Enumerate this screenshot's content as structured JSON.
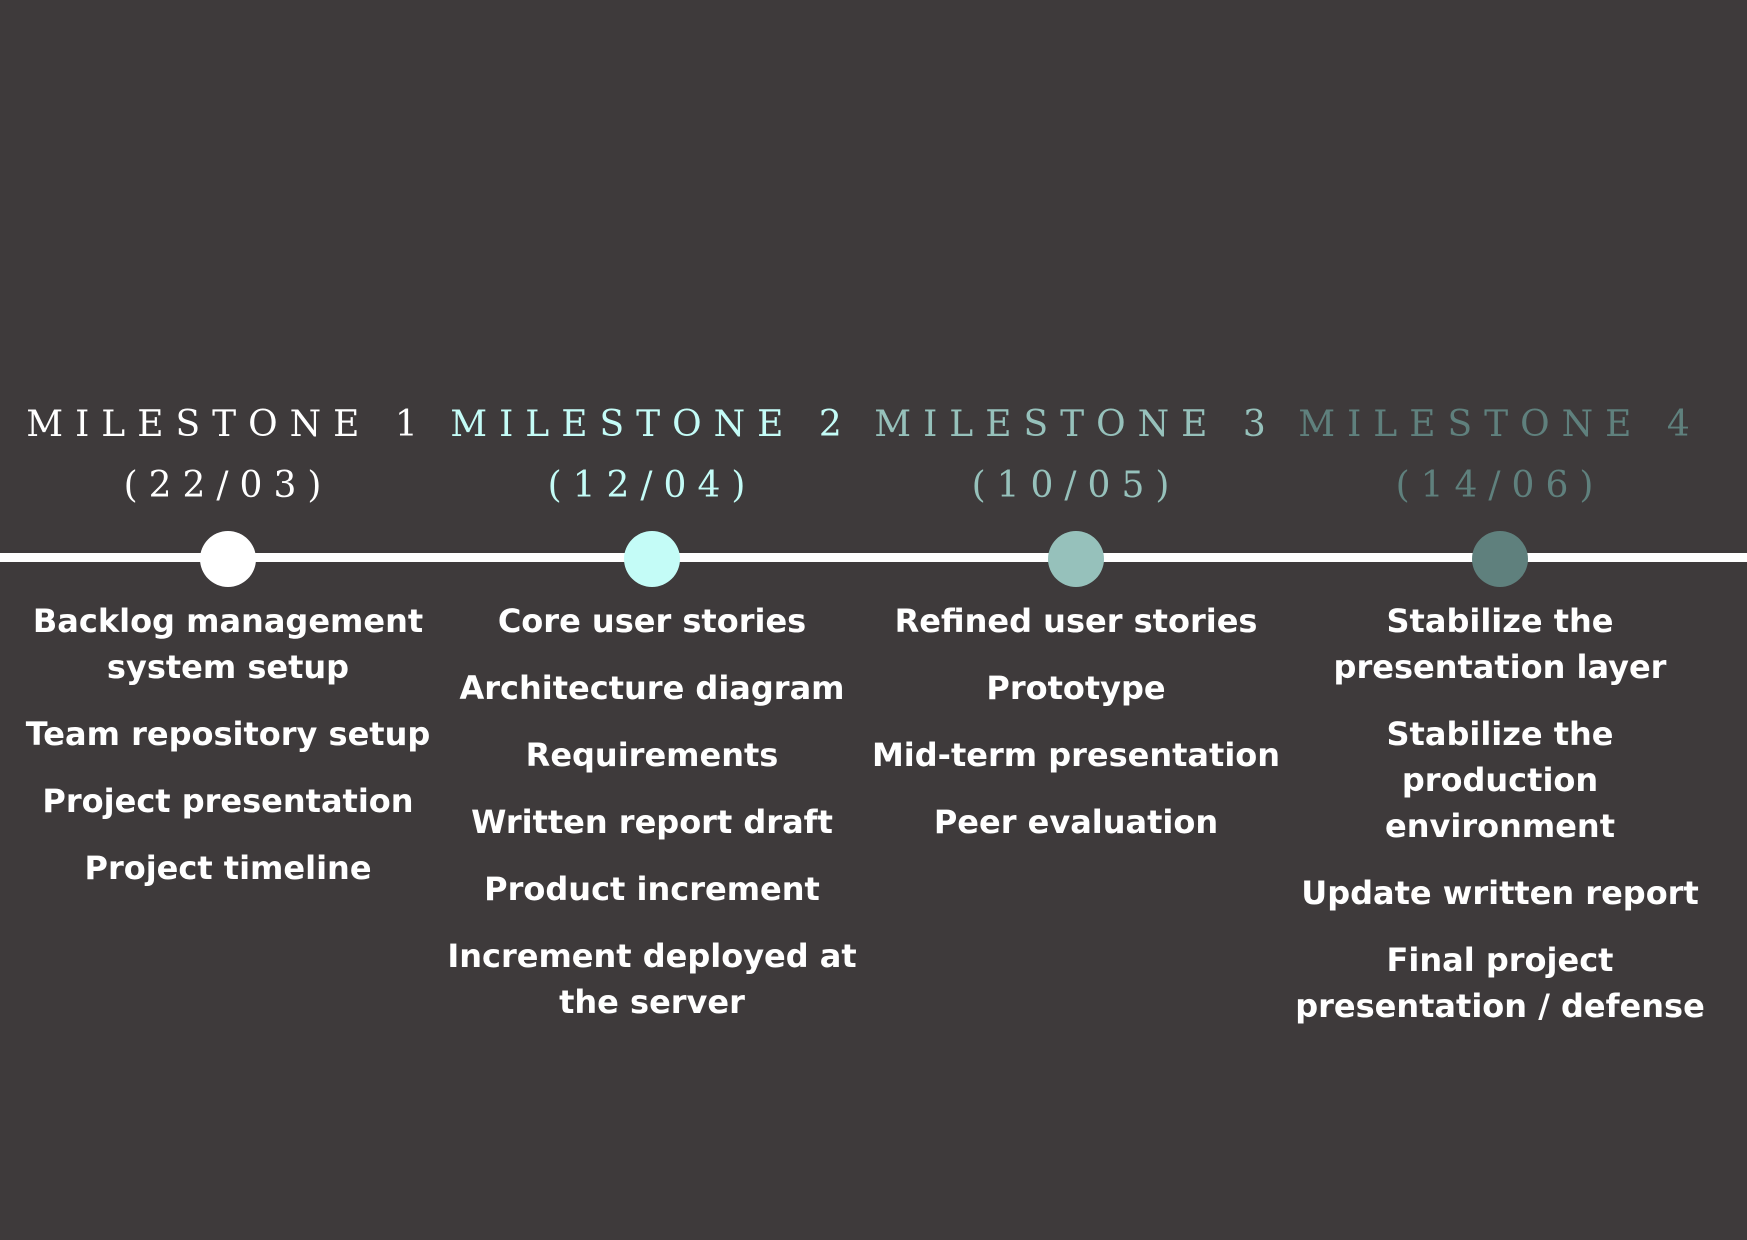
{
  "milestones": [
    {
      "title": "MILESTONE 1",
      "date": "(22/03)",
      "color": "#ffffff",
      "tasks": [
        "Backlog management system setup",
        "Team repository setup",
        "Project presentation",
        "Project timeline"
      ]
    },
    {
      "title": "MILESTONE 2",
      "date": "(12/04)",
      "color": "#c4fcf7",
      "tasks": [
        "Core user stories",
        "Architecture diagram",
        "Requirements",
        "Written report draft",
        "Product increment",
        "Increment deployed at the server"
      ]
    },
    {
      "title": "MILESTONE 3",
      "date": "(10/05)",
      "color": "#96c1bb",
      "tasks": [
        "Refined user stories",
        "Prototype",
        "Mid-term presentation",
        "Peer evaluation"
      ]
    },
    {
      "title": "MILESTONE 4",
      "date": "(14/06)",
      "color": "#5f807d",
      "tasks": [
        "Stabilize the presentation layer",
        "Stabilize the production environment",
        "Update written report",
        "Final project presentation / defense"
      ]
    }
  ]
}
